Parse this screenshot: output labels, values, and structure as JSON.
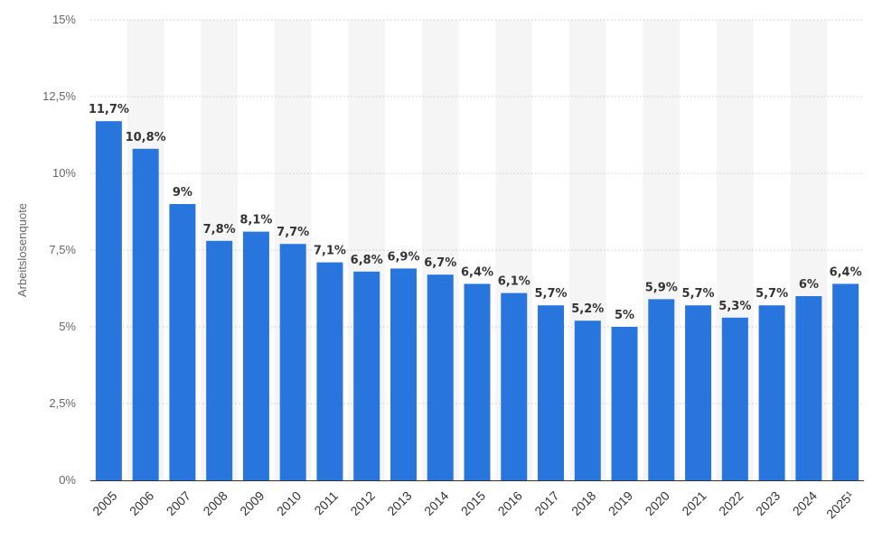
{
  "chart_data": {
    "type": "bar",
    "categories": [
      "2005",
      "2006",
      "2007",
      "2008",
      "2009",
      "2010",
      "2011",
      "2012",
      "2013",
      "2014",
      "2015",
      "2016",
      "2017",
      "2018",
      "2019",
      "2020",
      "2021",
      "2022",
      "2023",
      "2024",
      "2025¹"
    ],
    "values": [
      11.7,
      10.8,
      9.0,
      7.8,
      8.1,
      7.7,
      7.1,
      6.8,
      6.9,
      6.7,
      6.4,
      6.1,
      5.7,
      5.2,
      5.0,
      5.9,
      5.7,
      5.3,
      5.7,
      6.0,
      6.4
    ],
    "value_labels": [
      "11,7%",
      "10,8%",
      "9%",
      "7,8%",
      "8,1%",
      "7,7%",
      "7,1%",
      "6,8%",
      "6,9%",
      "6,7%",
      "6,4%",
      "6,1%",
      "5,7%",
      "5,2%",
      "5%",
      "5,9%",
      "5,7%",
      "5,3%",
      "5,7%",
      "6%",
      "6,4%"
    ],
    "ylabel": "Arbeitslosenquote",
    "xlabel": "",
    "ylim": [
      0,
      15
    ],
    "yticks": [
      0,
      2.5,
      5,
      7.5,
      10,
      12.5,
      15
    ],
    "ytick_labels": [
      "0%",
      "2,5%",
      "5%",
      "7,5%",
      "10%",
      "12,5%",
      "15%"
    ],
    "grid": true,
    "bar_color": "#2876dd",
    "band_color": "#f5f5f5",
    "grid_color": "#c8c8c8"
  }
}
